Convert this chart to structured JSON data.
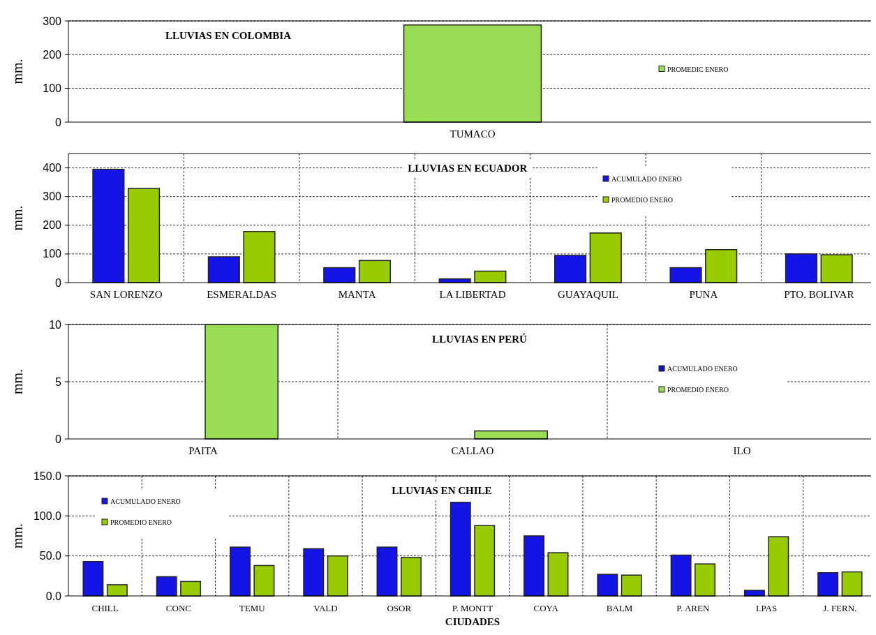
{
  "chart_data": [
    {
      "type": "bar",
      "title": "LLUVIAS EN COLOMBIA",
      "ylabel": "mm.",
      "categories": [
        "TUMACO"
      ],
      "series": [
        {
          "name": "PROMEDIC ENERO",
          "color": "#99dd55",
          "values": [
            288
          ]
        }
      ],
      "ylim": [
        0,
        300
      ],
      "yticks": [
        0,
        100,
        200,
        300
      ],
      "grid": "y",
      "legend": "right"
    },
    {
      "type": "bar",
      "title": "LLUVIAS EN ECUADOR",
      "ylabel": "mm.",
      "categories": [
        "SAN LORENZO",
        "ESMERALDAS",
        "MANTA",
        "LA LIBERTAD",
        "GUAYAQUIL",
        "PUNA",
        "PTO. BOLIVAR"
      ],
      "series": [
        {
          "name": "ACUMULADO ENERO",
          "color": "#1414e6",
          "values": [
            395,
            90,
            52,
            13,
            95,
            52,
            100
          ]
        },
        {
          "name": "PROMEDIO ENERO",
          "color": "#99cc00",
          "values": [
            328,
            178,
            77,
            40,
            173,
            115,
            97
          ]
        }
      ],
      "ylim": [
        0,
        450
      ],
      "yticks": [
        0,
        100,
        200,
        300,
        400
      ],
      "grid": true,
      "legend": "top right"
    },
    {
      "type": "bar",
      "title": "LLUVIAS EN PERÚ",
      "ylabel": "mm.",
      "categories": [
        "PAITA",
        "CALLAO",
        "ILO"
      ],
      "series": [
        {
          "name": "ACUMULADO ENERO",
          "color": "#1414b4",
          "values": [
            0,
            0,
            0
          ]
        },
        {
          "name": "PROMEDIO ENERO",
          "color": "#99dd55",
          "values": [
            10,
            0.7,
            0
          ]
        }
      ],
      "ylim": [
        0,
        10
      ],
      "yticks": [
        0,
        5,
        10
      ],
      "grid": true,
      "legend": "right"
    },
    {
      "type": "bar",
      "title": "LLUVIAS EN CHILE",
      "ylabel": "mm.",
      "xlabel": "CIUDADES",
      "categories": [
        "CHILL",
        "CONC",
        "TEMU",
        "VALD",
        "OSOR",
        "P. MONTT",
        "COYA",
        "BALM",
        "P. AREN",
        "I.PAS",
        "J. FERN."
      ],
      "series": [
        {
          "name": "ACUMULADO ENERO",
          "color": "#1414e6",
          "values": [
            43,
            24,
            61,
            59,
            61,
            117,
            75,
            27,
            51,
            7,
            29
          ]
        },
        {
          "name": "PROMEDIO ENERO",
          "color": "#99cc00",
          "values": [
            14,
            18,
            38,
            50,
            48,
            88,
            54,
            26,
            40,
            74,
            30
          ]
        }
      ],
      "ylim": [
        0,
        150
      ],
      "yticks": [
        {
          "value": 0,
          "label": "0.0"
        },
        {
          "value": 50,
          "label": "50.0"
        },
        {
          "value": 100,
          "label": "100.0"
        },
        {
          "value": 150,
          "label": "150.0"
        }
      ],
      "grid": true,
      "legend": "top left"
    }
  ]
}
